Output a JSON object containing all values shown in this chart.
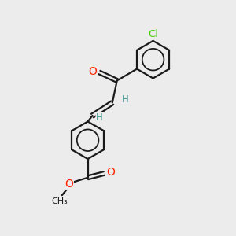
{
  "bg_color": "#ececec",
  "bond_color": "#1a1a1a",
  "bond_width": 1.6,
  "atom_colors": {
    "O": "#ff2200",
    "Cl": "#44cc00",
    "H": "#4a9999",
    "C": "#1a1a1a"
  },
  "font_size_atom": 10,
  "font_size_Cl": 9.5,
  "font_size_H": 8.5,
  "font_size_CH3": 8
}
